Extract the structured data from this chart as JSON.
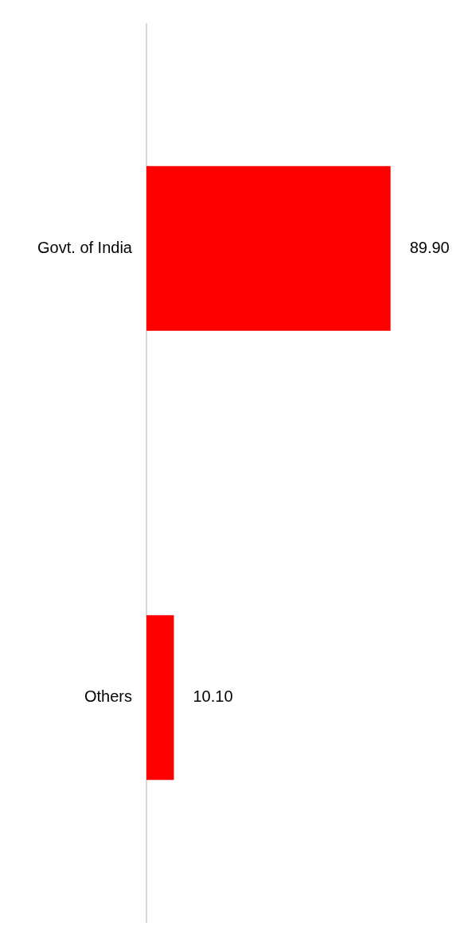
{
  "chart_data": {
    "type": "bar",
    "orientation": "horizontal",
    "categories": [
      "Govt. of India",
      "Others"
    ],
    "values": [
      89.9,
      10.1
    ],
    "color": "#ff0000",
    "value_labels": [
      "89.90",
      "10.10"
    ],
    "legend": false
  }
}
